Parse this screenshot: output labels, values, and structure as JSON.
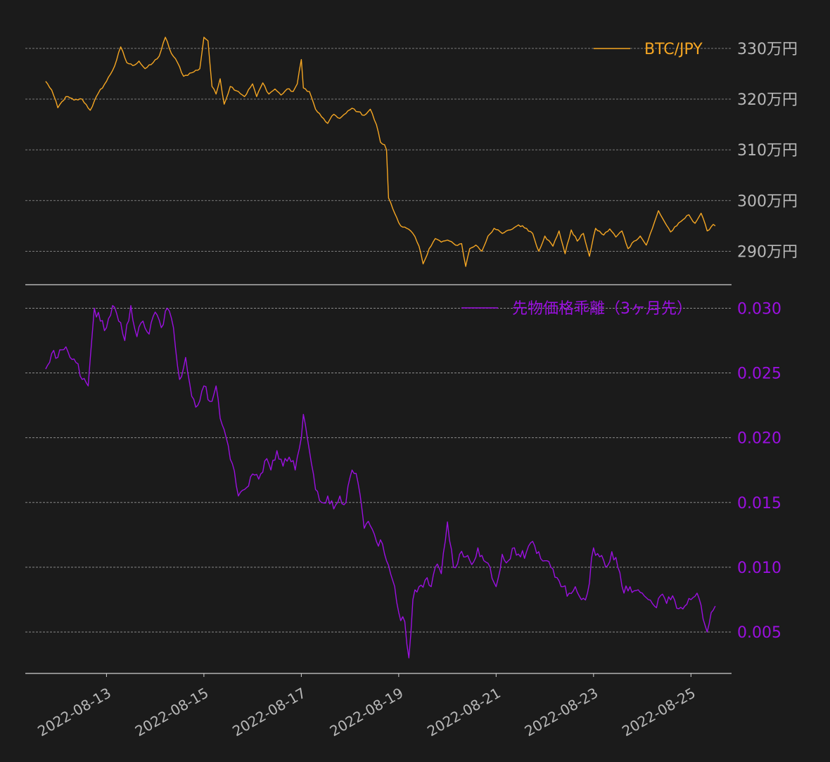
{
  "theme": {
    "background": "#1b1b1b",
    "grid": "#9a9a9a",
    "axis": "#d0d0d0",
    "tick_label": "#b8b8b8"
  },
  "chart_data": [
    {
      "type": "line",
      "title": "",
      "series": [
        {
          "name": "BTC/JPY",
          "color": "#f5a623"
        }
      ],
      "legend": "top-right",
      "ylim": [
        2834000,
        3340000
      ],
      "yticks": [
        2900000,
        3000000,
        3100000,
        3200000,
        3300000
      ],
      "ytick_labels": [
        "290万円",
        "300万円",
        "310万円",
        "320万円",
        "330万円"
      ],
      "grid": true,
      "anchors": [
        [
          "2022-08-11 18:00",
          3235000
        ],
        [
          "2022-08-11 21:00",
          3218000
        ],
        [
          "2022-08-12 00:00",
          3183000
        ],
        [
          "2022-08-12 04:00",
          3205000
        ],
        [
          "2022-08-12 08:00",
          3198000
        ],
        [
          "2022-08-12 12:00",
          3200000
        ],
        [
          "2022-08-12 16:00",
          3178000
        ],
        [
          "2022-08-12 20:00",
          3212000
        ],
        [
          "2022-08-13 00:00",
          3235000
        ],
        [
          "2022-08-13 04:00",
          3265000
        ],
        [
          "2022-08-13 07:00",
          3303000
        ],
        [
          "2022-08-13 10:00",
          3272000
        ],
        [
          "2022-08-13 13:00",
          3266000
        ],
        [
          "2022-08-13 16:00",
          3275000
        ],
        [
          "2022-08-13 19:00",
          3260000
        ],
        [
          "2022-08-13 22:00",
          3268000
        ],
        [
          "2022-08-14 02:00",
          3285000
        ],
        [
          "2022-08-14 05:00",
          3322000
        ],
        [
          "2022-08-14 08:00",
          3290000
        ],
        [
          "2022-08-14 11:00",
          3272000
        ],
        [
          "2022-08-14 14:00",
          3245000
        ],
        [
          "2022-08-14 18:00",
          3252000
        ],
        [
          "2022-08-14 22:00",
          3260000
        ],
        [
          "2022-08-15 00:00",
          3322000
        ],
        [
          "2022-08-15 02:00",
          3315000
        ],
        [
          "2022-08-15 04:00",
          3225000
        ],
        [
          "2022-08-15 06:00",
          3210000
        ],
        [
          "2022-08-15 08:00",
          3240000
        ],
        [
          "2022-08-15 10:00",
          3190000
        ],
        [
          "2022-08-15 13:00",
          3225000
        ],
        [
          "2022-08-15 17:00",
          3215000
        ],
        [
          "2022-08-15 20:00",
          3205000
        ],
        [
          "2022-08-16 00:00",
          3230000
        ],
        [
          "2022-08-16 02:00",
          3205000
        ],
        [
          "2022-08-16 05:00",
          3232000
        ],
        [
          "2022-08-16 08:00",
          3210000
        ],
        [
          "2022-08-16 11:00",
          3220000
        ],
        [
          "2022-08-16 14:00",
          3208000
        ],
        [
          "2022-08-16 17:00",
          3220000
        ],
        [
          "2022-08-16 20:00",
          3215000
        ],
        [
          "2022-08-16 22:00",
          3230000
        ],
        [
          "2022-08-17 00:00",
          3278000
        ],
        [
          "2022-08-17 01:00",
          3222000
        ],
        [
          "2022-08-17 04:00",
          3215000
        ],
        [
          "2022-08-17 07:00",
          3180000
        ],
        [
          "2022-08-17 10:00",
          3165000
        ],
        [
          "2022-08-17 13:00",
          3152000
        ],
        [
          "2022-08-17 16:00",
          3170000
        ],
        [
          "2022-08-17 19:00",
          3162000
        ],
        [
          "2022-08-17 22:00",
          3172000
        ],
        [
          "2022-08-18 01:00",
          3182000
        ],
        [
          "2022-08-18 04:00",
          3175000
        ],
        [
          "2022-08-18 07:00",
          3168000
        ],
        [
          "2022-08-18 10:00",
          3180000
        ],
        [
          "2022-08-18 13:00",
          3150000
        ],
        [
          "2022-08-18 15:00",
          3115000
        ],
        [
          "2022-08-18 17:00",
          3110000
        ],
        [
          "2022-08-18 18:00",
          3100000
        ],
        [
          "2022-08-18 19:00",
          3005000
        ],
        [
          "2022-08-18 22:00",
          2975000
        ],
        [
          "2022-08-19 01:00",
          2950000
        ],
        [
          "2022-08-19 04:00",
          2945000
        ],
        [
          "2022-08-19 07:00",
          2935000
        ],
        [
          "2022-08-19 10:00",
          2910000
        ],
        [
          "2022-08-19 12:00",
          2875000
        ],
        [
          "2022-08-19 15:00",
          2905000
        ],
        [
          "2022-08-19 18:00",
          2925000
        ],
        [
          "2022-08-19 21:00",
          2918000
        ],
        [
          "2022-08-20 00:00",
          2922000
        ],
        [
          "2022-08-20 04:00",
          2912000
        ],
        [
          "2022-08-20 07:00",
          2915000
        ],
        [
          "2022-08-20 09:00",
          2870000
        ],
        [
          "2022-08-20 11:00",
          2905000
        ],
        [
          "2022-08-20 14:00",
          2912000
        ],
        [
          "2022-08-20 17:00",
          2900000
        ],
        [
          "2022-08-20 20:00",
          2930000
        ],
        [
          "2022-08-20 23:00",
          2945000
        ],
        [
          "2022-08-21 03:00",
          2935000
        ],
        [
          "2022-08-21 07:00",
          2942000
        ],
        [
          "2022-08-21 11:00",
          2952000
        ],
        [
          "2022-08-21 15:00",
          2945000
        ],
        [
          "2022-08-21 18:00",
          2935000
        ],
        [
          "2022-08-21 21:00",
          2900000
        ],
        [
          "2022-08-22 00:00",
          2930000
        ],
        [
          "2022-08-22 04:00",
          2910000
        ],
        [
          "2022-08-22 07:00",
          2940000
        ],
        [
          "2022-08-22 10:00",
          2895000
        ],
        [
          "2022-08-22 13:00",
          2942000
        ],
        [
          "2022-08-22 16:00",
          2920000
        ],
        [
          "2022-08-22 19:00",
          2935000
        ],
        [
          "2022-08-22 22:00",
          2890000
        ],
        [
          "2022-08-23 01:00",
          2945000
        ],
        [
          "2022-08-23 05:00",
          2932000
        ],
        [
          "2022-08-23 08:00",
          2944000
        ],
        [
          "2022-08-23 11:00",
          2928000
        ],
        [
          "2022-08-23 14:00",
          2940000
        ],
        [
          "2022-08-23 17:00",
          2905000
        ],
        [
          "2022-08-23 20:00",
          2920000
        ],
        [
          "2022-08-23 23:00",
          2930000
        ],
        [
          "2022-08-24 02:00",
          2912000
        ],
        [
          "2022-08-24 05:00",
          2945000
        ],
        [
          "2022-08-24 08:00",
          2980000
        ],
        [
          "2022-08-24 11:00",
          2958000
        ],
        [
          "2022-08-24 14:00",
          2938000
        ],
        [
          "2022-08-24 17:00",
          2950000
        ],
        [
          "2022-08-24 20:00",
          2962000
        ],
        [
          "2022-08-24 23:00",
          2972000
        ],
        [
          "2022-08-25 02:00",
          2955000
        ],
        [
          "2022-08-25 05:00",
          2975000
        ],
        [
          "2022-08-25 08:00",
          2940000
        ],
        [
          "2022-08-25 11:00",
          2953000
        ],
        [
          "2022-08-25 12:00",
          2950000
        ]
      ]
    },
    {
      "type": "line",
      "title": "",
      "series": [
        {
          "name": "先物価格乖離（3ヶ月先）",
          "color": "#9b10e0"
        }
      ],
      "legend": "top-right",
      "ylim": [
        0.0018,
        0.031
      ],
      "yticks": [
        0.005,
        0.01,
        0.015,
        0.02,
        0.025,
        0.03
      ],
      "ytick_labels": [
        "0.005",
        "0.010",
        "0.015",
        "0.020",
        "0.025",
        "0.030"
      ],
      "grid": true,
      "anchors": [
        [
          "2022-08-11 18:00",
          0.0253
        ],
        [
          "2022-08-11 21:00",
          0.0265
        ],
        [
          "2022-08-12 00:00",
          0.0262
        ],
        [
          "2022-08-12 03:00",
          0.0268
        ],
        [
          "2022-08-12 06:00",
          0.0262
        ],
        [
          "2022-08-12 09:00",
          0.0258
        ],
        [
          "2022-08-12 12:00",
          0.0245
        ],
        [
          "2022-08-12 15:00",
          0.024
        ],
        [
          "2022-08-12 18:00",
          0.03
        ],
        [
          "2022-08-12 21:00",
          0.029
        ],
        [
          "2022-08-13 00:00",
          0.0285
        ],
        [
          "2022-08-13 03:00",
          0.0302
        ],
        [
          "2022-08-13 06:00",
          0.029
        ],
        [
          "2022-08-13 09:00",
          0.0275
        ],
        [
          "2022-08-13 12:00",
          0.0302
        ],
        [
          "2022-08-13 15:00",
          0.0278
        ],
        [
          "2022-08-13 18:00",
          0.029
        ],
        [
          "2022-08-13 21:00",
          0.028
        ],
        [
          "2022-08-14 00:00",
          0.0297
        ],
        [
          "2022-08-14 03:00",
          0.0285
        ],
        [
          "2022-08-14 06:00",
          0.03
        ],
        [
          "2022-08-14 09:00",
          0.0285
        ],
        [
          "2022-08-14 12:00",
          0.0245
        ],
        [
          "2022-08-14 15:00",
          0.0262
        ],
        [
          "2022-08-14 18:00",
          0.0232
        ],
        [
          "2022-08-14 21:00",
          0.0225
        ],
        [
          "2022-08-15 00:00",
          0.024
        ],
        [
          "2022-08-15 03:00",
          0.0228
        ],
        [
          "2022-08-15 06:00",
          0.024
        ],
        [
          "2022-08-15 08:00",
          0.0215
        ],
        [
          "2022-08-15 11:00",
          0.02
        ],
        [
          "2022-08-15 14:00",
          0.018
        ],
        [
          "2022-08-15 17:00",
          0.0155
        ],
        [
          "2022-08-15 20:00",
          0.016
        ],
        [
          "2022-08-16 00:00",
          0.0172
        ],
        [
          "2022-08-16 03:00",
          0.0168
        ],
        [
          "2022-08-16 06:00",
          0.0182
        ],
        [
          "2022-08-16 09:00",
          0.0175
        ],
        [
          "2022-08-16 12:00",
          0.019
        ],
        [
          "2022-08-16 15:00",
          0.0178
        ],
        [
          "2022-08-16 18:00",
          0.0185
        ],
        [
          "2022-08-16 21:00",
          0.0175
        ],
        [
          "2022-08-17 00:00",
          0.02
        ],
        [
          "2022-08-17 01:00",
          0.0218
        ],
        [
          "2022-08-17 04:00",
          0.019
        ],
        [
          "2022-08-17 07:00",
          0.016
        ],
        [
          "2022-08-17 10:00",
          0.015
        ],
        [
          "2022-08-17 13:00",
          0.0155
        ],
        [
          "2022-08-17 16:00",
          0.0145
        ],
        [
          "2022-08-17 19:00",
          0.0155
        ],
        [
          "2022-08-17 22:00",
          0.015
        ],
        [
          "2022-08-18 01:00",
          0.0175
        ],
        [
          "2022-08-18 04:00",
          0.0165
        ],
        [
          "2022-08-18 07:00",
          0.013
        ],
        [
          "2022-08-18 10:00",
          0.0132
        ],
        [
          "2022-08-18 13:00",
          0.012
        ],
        [
          "2022-08-18 16:00",
          0.0118
        ],
        [
          "2022-08-18 18:00",
          0.0105
        ],
        [
          "2022-08-18 21:00",
          0.009
        ],
        [
          "2022-08-19 00:00",
          0.0065
        ],
        [
          "2022-08-19 03:00",
          0.0058
        ],
        [
          "2022-08-19 05:00",
          0.003
        ],
        [
          "2022-08-19 07:00",
          0.0075
        ],
        [
          "2022-08-19 10:00",
          0.0085
        ],
        [
          "2022-08-19 13:00",
          0.009
        ],
        [
          "2022-08-19 16:00",
          0.0085
        ],
        [
          "2022-08-19 18:00",
          0.01
        ],
        [
          "2022-08-19 21:00",
          0.0095
        ],
        [
          "2022-08-20 00:00",
          0.0135
        ],
        [
          "2022-08-20 03:00",
          0.01
        ],
        [
          "2022-08-20 06:00",
          0.011
        ],
        [
          "2022-08-20 09:00",
          0.0108
        ],
        [
          "2022-08-20 12:00",
          0.0102
        ],
        [
          "2022-08-20 15:00",
          0.0115
        ],
        [
          "2022-08-20 18:00",
          0.0105
        ],
        [
          "2022-08-20 21:00",
          0.01
        ],
        [
          "2022-08-21 00:00",
          0.0085
        ],
        [
          "2022-08-21 03:00",
          0.011
        ],
        [
          "2022-08-21 06:00",
          0.0105
        ],
        [
          "2022-08-21 09:00",
          0.0115
        ],
        [
          "2022-08-21 12:00",
          0.0108
        ],
        [
          "2022-08-21 15:00",
          0.0112
        ],
        [
          "2022-08-21 18:00",
          0.012
        ],
        [
          "2022-08-21 21:00",
          0.0112
        ],
        [
          "2022-08-22 00:00",
          0.0105
        ],
        [
          "2022-08-22 03:00",
          0.01
        ],
        [
          "2022-08-22 06:00",
          0.0092
        ],
        [
          "2022-08-22 09:00",
          0.0085
        ],
        [
          "2022-08-22 12:00",
          0.008
        ],
        [
          "2022-08-22 15:00",
          0.0085
        ],
        [
          "2022-08-22 18:00",
          0.0075
        ],
        [
          "2022-08-22 21:00",
          0.008
        ],
        [
          "2022-08-23 00:00",
          0.0115
        ],
        [
          "2022-08-23 03:00",
          0.0108
        ],
        [
          "2022-08-23 06:00",
          0.01
        ],
        [
          "2022-08-23 09:00",
          0.0112
        ],
        [
          "2022-08-23 12:00",
          0.01
        ],
        [
          "2022-08-23 15:00",
          0.008
        ],
        [
          "2022-08-23 18:00",
          0.0085
        ],
        [
          "2022-08-23 21:00",
          0.0082
        ],
        [
          "2022-08-24 00:00",
          0.008
        ],
        [
          "2022-08-24 03:00",
          0.0075
        ],
        [
          "2022-08-24 06:00",
          0.007
        ],
        [
          "2022-08-24 09:00",
          0.0078
        ],
        [
          "2022-08-24 12:00",
          0.0072
        ],
        [
          "2022-08-24 15:00",
          0.0078
        ],
        [
          "2022-08-24 18:00",
          0.0068
        ],
        [
          "2022-08-24 21:00",
          0.007
        ],
        [
          "2022-08-25 00:00",
          0.0075
        ],
        [
          "2022-08-25 03:00",
          0.008
        ],
        [
          "2022-08-25 06:00",
          0.006
        ],
        [
          "2022-08-25 08:00",
          0.005
        ],
        [
          "2022-08-25 10:00",
          0.0065
        ],
        [
          "2022-08-25 12:00",
          0.007
        ]
      ]
    }
  ],
  "x_axis": {
    "type": "date",
    "xlim": [
      "2022-08-11 08:00",
      "2022-08-25 20:00"
    ],
    "ticks": [
      "2022-08-13",
      "2022-08-15",
      "2022-08-17",
      "2022-08-19",
      "2022-08-21",
      "2022-08-23",
      "2022-08-25"
    ],
    "tick_labels": [
      "2022-08-13",
      "2022-08-15",
      "2022-08-17",
      "2022-08-19",
      "2022-08-21",
      "2022-08-23",
      "2022-08-25"
    ],
    "label_rotation": -30
  }
}
